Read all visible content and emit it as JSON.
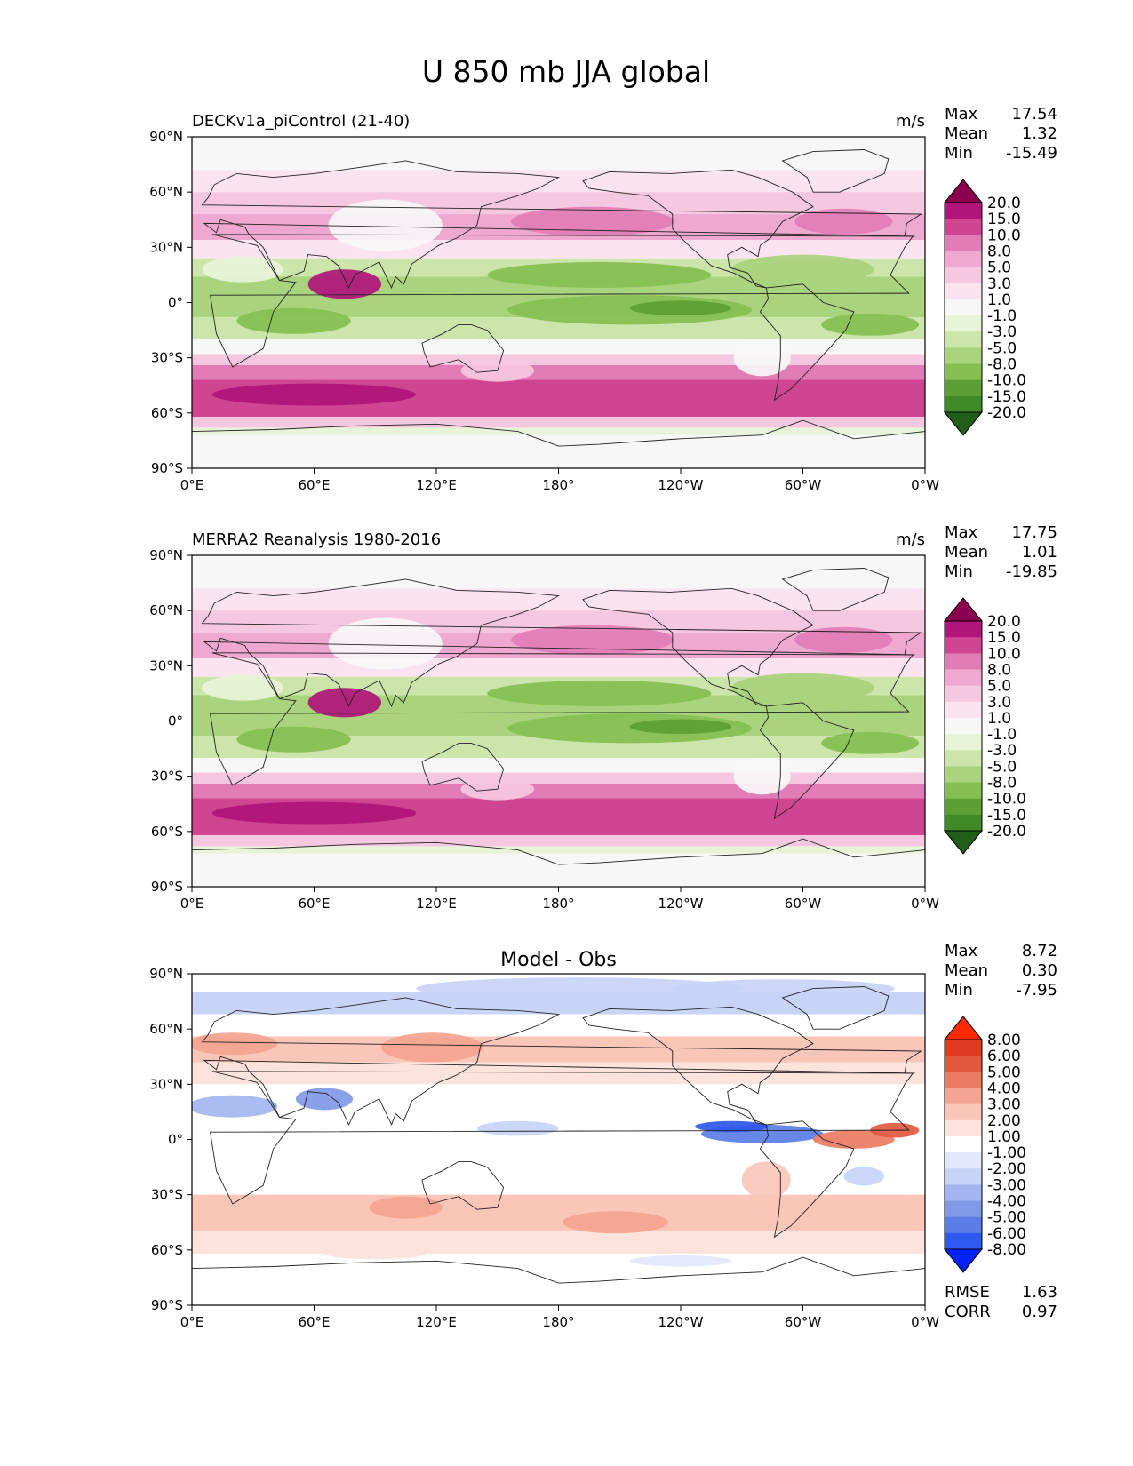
{
  "figure": {
    "title": "U 850 mb JJA global"
  },
  "colors": {
    "model_levels": [
      "#1f5f1a",
      "#3d8a26",
      "#5c9f34",
      "#86bf51",
      "#a9d37c",
      "#cbe5aa",
      "#e8f4d8",
      "#f7f7f7",
      "#fbe3f0",
      "#f6c7e0",
      "#efa9d0",
      "#e27cb6",
      "#cf4592",
      "#b0157a",
      "#8a004f"
    ],
    "diff_levels": [
      "#0022ff",
      "#2f58ee",
      "#5a7ee6",
      "#8099e8",
      "#a4b6ef",
      "#c8d4f6",
      "#e2e8fb",
      "#ffffff",
      "#fde3dc",
      "#f9c6b8",
      "#f4a490",
      "#ec7b63",
      "#e35940",
      "#dd3a1f",
      "#ff2a00"
    ]
  },
  "chart_data": [
    {
      "type": "heatmap",
      "title": "DECKv1a_piControl (21-40)",
      "units": "m/s",
      "stats": {
        "max_label": "Max",
        "max": "17.54",
        "mean_label": "Mean",
        "mean": "1.32",
        "min_label": "Min",
        "min": "-15.49"
      },
      "x_ticks": [
        "0°E",
        "60°E",
        "120°E",
        "180°",
        "120°W",
        "60°W",
        "0°W"
      ],
      "y_ticks": [
        "90°N",
        "60°N",
        "30°N",
        "0°",
        "30°S",
        "60°S",
        "90°S"
      ],
      "xlim": [
        0,
        360
      ],
      "ylim": [
        -90,
        90
      ],
      "colorbar_labels": [
        "20.0",
        "15.0",
        "10.0",
        "8.0",
        "5.0",
        "3.0",
        "1.0",
        "-1.0",
        "-3.0",
        "-5.0",
        "-8.0",
        "-10.0",
        "-15.0",
        "-20.0"
      ],
      "colorbar_bounds": [
        -20,
        -15,
        -10,
        -8,
        -5,
        -3,
        -1,
        1,
        3,
        5,
        8,
        10,
        15,
        20
      ]
    },
    {
      "type": "heatmap",
      "title": "MERRA2 Reanalysis 1980-2016",
      "units": "m/s",
      "stats": {
        "max_label": "Max",
        "max": "17.75",
        "mean_label": "Mean",
        "mean": "1.01",
        "min_label": "Min",
        "min": "-19.85"
      },
      "x_ticks": [
        "0°E",
        "60°E",
        "120°E",
        "180°",
        "120°W",
        "60°W",
        "0°W"
      ],
      "y_ticks": [
        "90°N",
        "60°N",
        "30°N",
        "0°",
        "30°S",
        "60°S",
        "90°S"
      ],
      "xlim": [
        0,
        360
      ],
      "ylim": [
        -90,
        90
      ],
      "colorbar_labels": [
        "20.0",
        "15.0",
        "10.0",
        "8.0",
        "5.0",
        "3.0",
        "1.0",
        "-1.0",
        "-3.0",
        "-5.0",
        "-8.0",
        "-10.0",
        "-15.0",
        "-20.0"
      ],
      "colorbar_bounds": [
        -20,
        -15,
        -10,
        -8,
        -5,
        -3,
        -1,
        1,
        3,
        5,
        8,
        10,
        15,
        20
      ]
    },
    {
      "type": "heatmap",
      "title": "Model - Obs",
      "units": "",
      "stats": {
        "max_label": "Max",
        "max": "8.72",
        "mean_label": "Mean",
        "mean": "0.30",
        "min_label": "Min",
        "min": "-7.95"
      },
      "metrics": {
        "rmse_label": "RMSE",
        "rmse": "1.63",
        "corr_label": "CORR",
        "corr": "0.97"
      },
      "x_ticks": [
        "0°E",
        "60°E",
        "120°E",
        "180°",
        "120°W",
        "60°W",
        "0°W"
      ],
      "y_ticks": [
        "90°N",
        "60°N",
        "30°N",
        "0°",
        "30°S",
        "60°S",
        "90°S"
      ],
      "xlim": [
        0,
        360
      ],
      "ylim": [
        -90,
        90
      ],
      "colorbar_labels": [
        "8.00",
        "6.00",
        "5.00",
        "4.00",
        "3.00",
        "2.00",
        "1.00",
        "-1.00",
        "-2.00",
        "-3.00",
        "-4.00",
        "-5.00",
        "-6.00",
        "-8.00"
      ],
      "colorbar_bounds": [
        -8,
        -6,
        -5,
        -4,
        -3,
        -2,
        -1,
        1,
        2,
        3,
        4,
        5,
        6,
        8
      ]
    }
  ]
}
